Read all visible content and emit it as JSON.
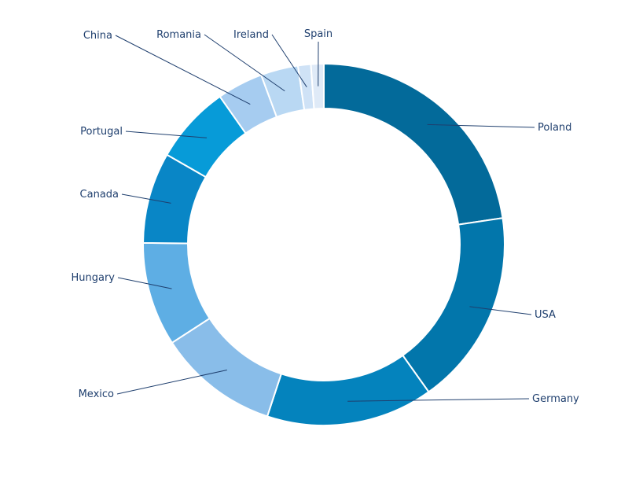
{
  "chart_data": {
    "type": "pie",
    "variant": "donut",
    "title": "",
    "legend": "none",
    "categories": [
      "Poland",
      "USA",
      "Germany",
      "Mexico",
      "Hungary",
      "Canada",
      "Portugal",
      "China",
      "Romania",
      "Ireland",
      "Spain"
    ],
    "values": [
      23.7,
      18.3,
      15.6,
      11.3,
      9.7,
      8.5,
      7.3,
      4.3,
      3.5,
      1.2,
      1.2
    ],
    "colors": [
      "#036a9a",
      "#0276ab",
      "#0483bd",
      "#89bde9",
      "#5eaee4",
      "#0986c6",
      "#079bd8",
      "#a6ccf0",
      "#b9d8f3",
      "#cfe2f6",
      "#dfeaf7"
    ]
  }
}
